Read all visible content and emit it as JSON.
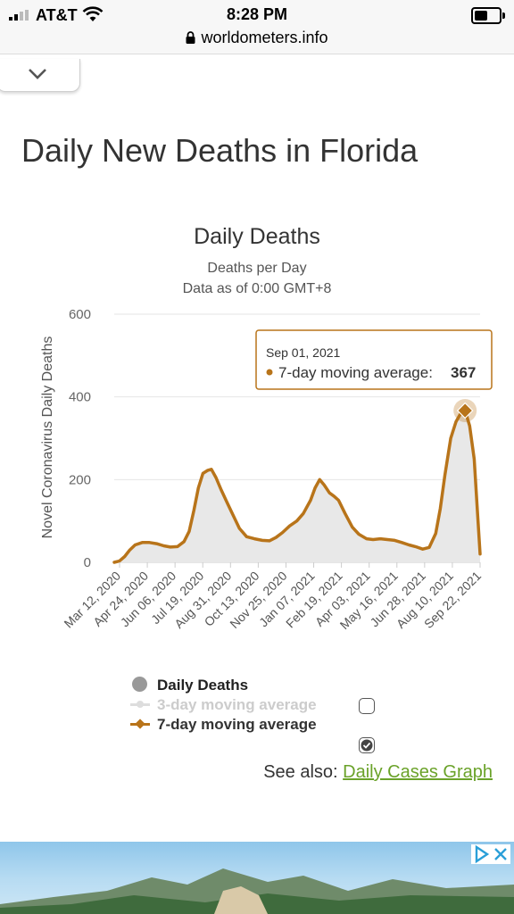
{
  "status_bar": {
    "carrier": "AT&T",
    "time": "8:28 PM",
    "url": "worldometers.info"
  },
  "page": {
    "title": "Daily New Deaths in Florida"
  },
  "chart_data": {
    "type": "area",
    "title": "Daily Deaths",
    "subtitle": "Deaths per Day",
    "subtitle2": "Data as of 0:00 GMT+8",
    "ylabel": "Novel Coronavirus Daily Deaths",
    "xlabel": "",
    "ylim": [
      0,
      600
    ],
    "yticks": [
      "0",
      "200",
      "400",
      "600"
    ],
    "xticks": [
      "Mar 12, 2020",
      "Apr 24, 2020",
      "Jun 06, 2020",
      "Jul 19, 2020",
      "Aug 31, 2020",
      "Oct 13, 2020",
      "Nov 25, 2020",
      "Jan 07, 2021",
      "Feb 19, 2021",
      "Apr 03, 2021",
      "May 16, 2021",
      "Jun 28, 2021",
      "Aug 10, 2021",
      "Sep 22, 2021"
    ],
    "grid": true,
    "series": [
      {
        "name": "7-day moving average",
        "color": "#b8741a",
        "points": [
          [
            "2020-03-12",
            0
          ],
          [
            "2020-03-20",
            3
          ],
          [
            "2020-03-28",
            14
          ],
          [
            "2020-04-05",
            30
          ],
          [
            "2020-04-13",
            42
          ],
          [
            "2020-04-24",
            48
          ],
          [
            "2020-05-05",
            48
          ],
          [
            "2020-05-16",
            45
          ],
          [
            "2020-05-27",
            40
          ],
          [
            "2020-06-06",
            37
          ],
          [
            "2020-06-17",
            38
          ],
          [
            "2020-06-27",
            50
          ],
          [
            "2020-07-05",
            75
          ],
          [
            "2020-07-12",
            125
          ],
          [
            "2020-07-19",
            180
          ],
          [
            "2020-07-26",
            215
          ],
          [
            "2020-08-02",
            222
          ],
          [
            "2020-08-08",
            225
          ],
          [
            "2020-08-15",
            205
          ],
          [
            "2020-08-23",
            175
          ],
          [
            "2020-08-31",
            148
          ],
          [
            "2020-09-10",
            115
          ],
          [
            "2020-09-20",
            82
          ],
          [
            "2020-10-01",
            62
          ],
          [
            "2020-10-13",
            57
          ],
          [
            "2020-10-25",
            53
          ],
          [
            "2020-11-05",
            52
          ],
          [
            "2020-11-15",
            60
          ],
          [
            "2020-11-25",
            72
          ],
          [
            "2020-12-06",
            88
          ],
          [
            "2020-12-17",
            100
          ],
          [
            "2020-12-27",
            118
          ],
          [
            "2021-01-07",
            150
          ],
          [
            "2021-01-14",
            180
          ],
          [
            "2021-01-21",
            200
          ],
          [
            "2021-01-28",
            187
          ],
          [
            "2021-02-05",
            168
          ],
          [
            "2021-02-12",
            160
          ],
          [
            "2021-02-19",
            150
          ],
          [
            "2021-03-01",
            118
          ],
          [
            "2021-03-12",
            85
          ],
          [
            "2021-03-22",
            68
          ],
          [
            "2021-04-03",
            57
          ],
          [
            "2021-04-13",
            55
          ],
          [
            "2021-04-24",
            57
          ],
          [
            "2021-05-05",
            55
          ],
          [
            "2021-05-16",
            53
          ],
          [
            "2021-05-27",
            48
          ],
          [
            "2021-06-07",
            42
          ],
          [
            "2021-06-17",
            38
          ],
          [
            "2021-06-28",
            32
          ],
          [
            "2021-07-08",
            36
          ],
          [
            "2021-07-18",
            70
          ],
          [
            "2021-07-25",
            130
          ],
          [
            "2021-08-01",
            210
          ],
          [
            "2021-08-10",
            300
          ],
          [
            "2021-08-18",
            340
          ],
          [
            "2021-08-26",
            362
          ],
          [
            "2021-09-01",
            367
          ],
          [
            "2021-09-08",
            330
          ],
          [
            "2021-09-15",
            250
          ],
          [
            "2021-09-20",
            120
          ],
          [
            "2021-09-24",
            20
          ]
        ]
      }
    ],
    "tooltip": {
      "date": "Sep 01, 2021",
      "label": "7-day moving average:",
      "value": "367"
    },
    "legend": [
      {
        "name": "Daily Deaths",
        "checked": null,
        "color": "#999999"
      },
      {
        "name": "3-day moving average",
        "checked": false,
        "color": "#cccccc"
      },
      {
        "name": "7-day moving average",
        "checked": true,
        "color": "#b8741a"
      }
    ]
  },
  "see_also": {
    "text": "See also:",
    "link": "Daily Cases Graph"
  },
  "ad": {
    "icon": "adchoices-icon"
  }
}
